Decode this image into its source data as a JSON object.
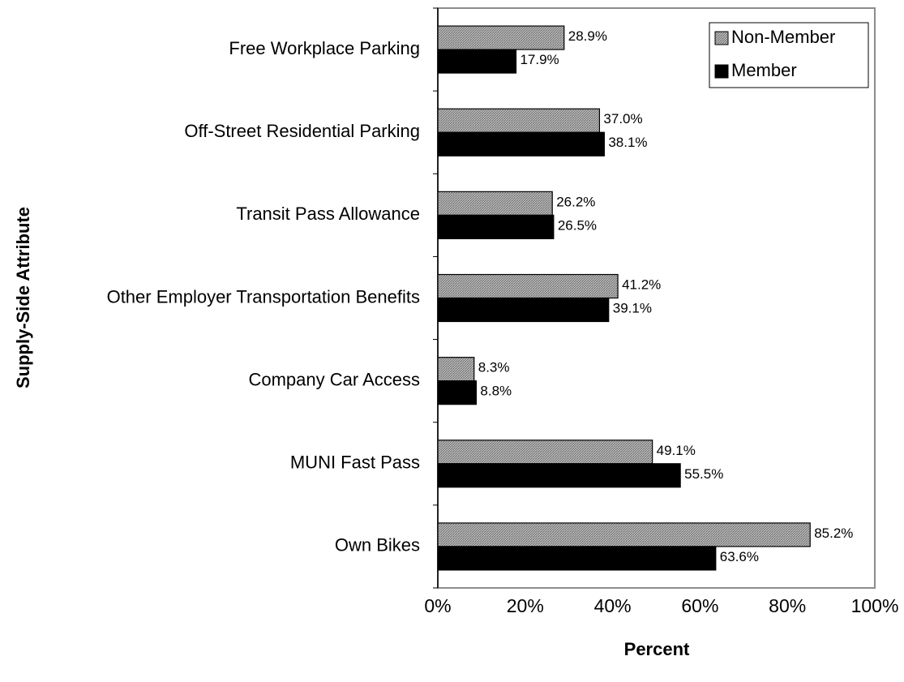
{
  "chart_data": {
    "type": "hbar",
    "xlabel": "Percent",
    "ylabel": "Supply-Side Attribute",
    "categories": [
      "Free Workplace Parking",
      "Off-Street Residential Parking",
      "Transit Pass Allowance",
      "Other Employer Transportation Benefits",
      "Company Car Access",
      "MUNI Fast Pass",
      "Own Bikes"
    ],
    "series": [
      {
        "name": "Non-Member",
        "color": "#9a9a9a",
        "values": [
          28.9,
          37.0,
          26.2,
          41.2,
          8.3,
          49.1,
          85.2
        ],
        "value_labels": [
          "28.9%",
          "37.0%",
          "26.2%",
          "41.2%",
          "8.3%",
          "49.1%",
          "85.2%"
        ]
      },
      {
        "name": "Member",
        "color": "#000000",
        "values": [
          17.9,
          38.1,
          26.5,
          39.1,
          8.8,
          55.5,
          63.6
        ],
        "value_labels": [
          "17.9%",
          "38.1%",
          "26.5%",
          "39.1%",
          "8.8%",
          "55.5%",
          "63.6%"
        ]
      }
    ],
    "xlim": [
      0,
      100
    ],
    "xticks": [
      {
        "value": 0,
        "label": "0%"
      },
      {
        "value": 20,
        "label": "20%"
      },
      {
        "value": 40,
        "label": "40%"
      },
      {
        "value": 60,
        "label": "60%"
      },
      {
        "value": 80,
        "label": "80%"
      },
      {
        "value": 100,
        "label": "100%"
      }
    ],
    "grid": false,
    "legend": "upper right"
  }
}
